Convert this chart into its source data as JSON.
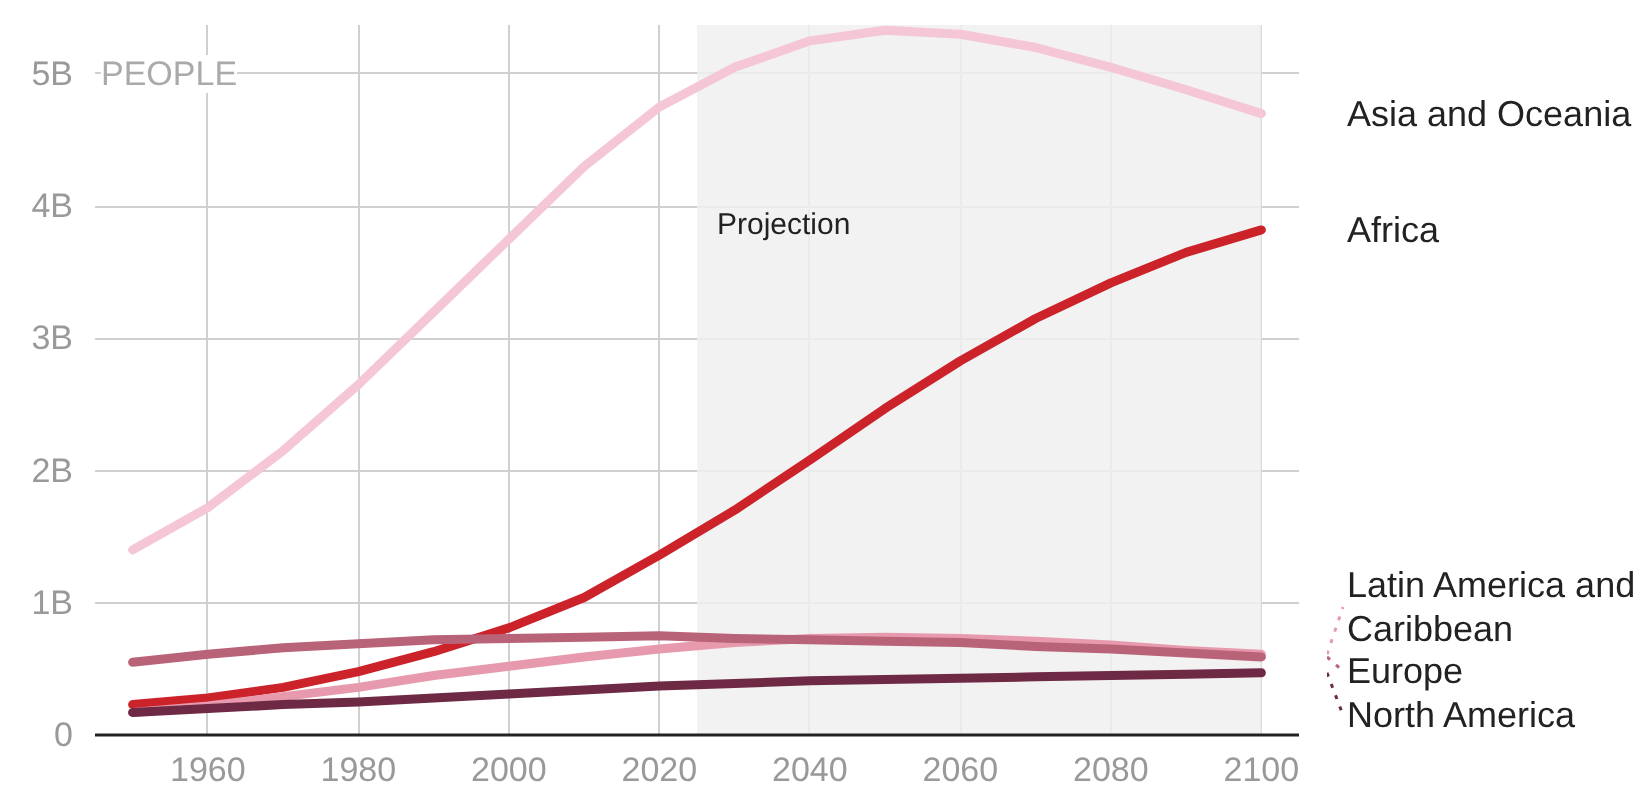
{
  "chart_data": {
    "type": "line",
    "ylabel": "PEOPLE",
    "x": [
      1950,
      1960,
      1970,
      1980,
      1990,
      2000,
      2010,
      2020,
      2030,
      2040,
      2050,
      2060,
      2070,
      2080,
      2090,
      2100
    ],
    "series": [
      {
        "name": "Asia and Oceania",
        "color": "#f5c6d6",
        "values": [
          1.4,
          1.72,
          2.15,
          2.65,
          3.2,
          3.75,
          4.3,
          4.75,
          5.05,
          5.25,
          5.33,
          5.3,
          5.2,
          5.05,
          4.88,
          4.7
        ]
      },
      {
        "name": "Africa",
        "color": "#cc2229",
        "values": [
          0.23,
          0.28,
          0.36,
          0.48,
          0.63,
          0.81,
          1.04,
          1.36,
          1.7,
          2.08,
          2.47,
          2.83,
          3.15,
          3.42,
          3.65,
          3.82
        ]
      },
      {
        "name": "Latin America and Caribbean",
        "color": "#e79aad",
        "values": [
          0.17,
          0.22,
          0.29,
          0.36,
          0.45,
          0.52,
          0.59,
          0.65,
          0.7,
          0.73,
          0.74,
          0.73,
          0.71,
          0.68,
          0.64,
          0.61
        ]
      },
      {
        "name": "Europe",
        "color": "#b96379",
        "values": [
          0.55,
          0.61,
          0.66,
          0.69,
          0.72,
          0.73,
          0.74,
          0.75,
          0.73,
          0.72,
          0.71,
          0.7,
          0.67,
          0.65,
          0.62,
          0.59
        ]
      },
      {
        "name": "North America",
        "color": "#6e2a44",
        "values": [
          0.17,
          0.2,
          0.23,
          0.25,
          0.28,
          0.31,
          0.34,
          0.37,
          0.39,
          0.41,
          0.42,
          0.43,
          0.44,
          0.45,
          0.46,
          0.47
        ]
      }
    ],
    "xlim": [
      1945,
      2105
    ],
    "ylim": [
      0,
      5.37
    ],
    "xticks": [
      1960,
      1980,
      2000,
      2020,
      2040,
      2060,
      2080,
      2100
    ],
    "yticks": [
      0,
      {
        "value": 1,
        "label": "1B"
      },
      {
        "value": 2,
        "label": "2B"
      },
      {
        "value": 3,
        "label": "3B"
      },
      {
        "value": 4,
        "label": "4B"
      },
      {
        "value": 5,
        "label": "5B"
      }
    ],
    "bands": [
      {
        "axis": "x",
        "from": 2025,
        "to": 2100,
        "label": "Projection",
        "color": "#f0f0f0"
      }
    ],
    "grid": true,
    "legend": "right",
    "marker": "none",
    "line_style": "solid"
  }
}
